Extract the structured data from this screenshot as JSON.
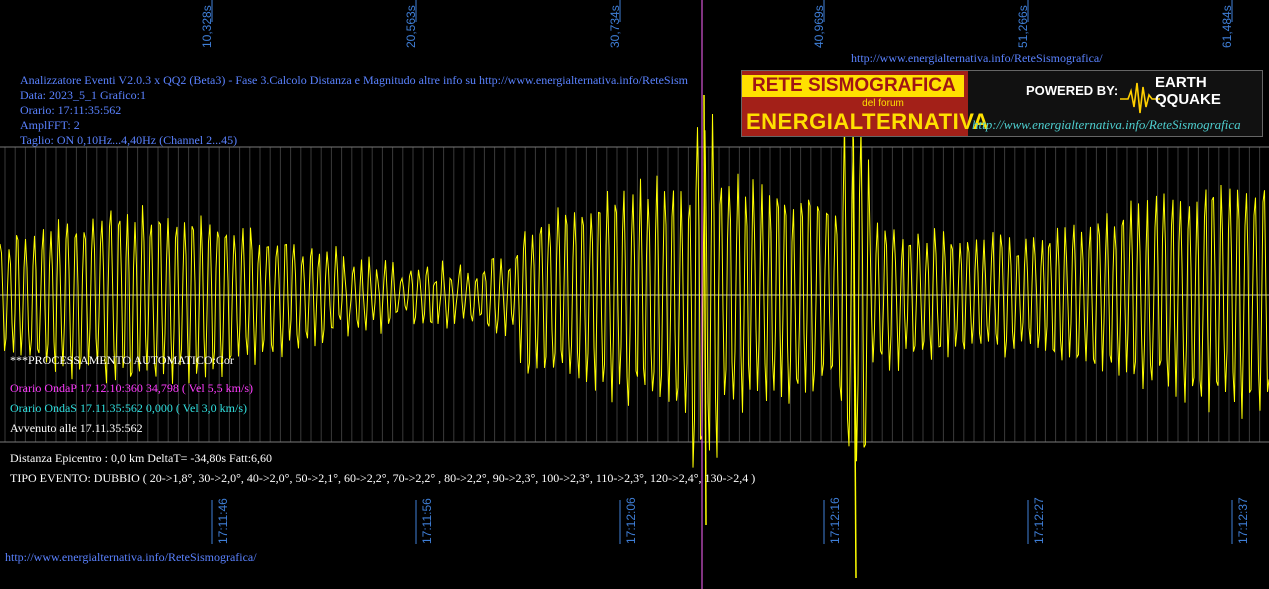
{
  "header": {
    "title_line": "Analizzatore Eventi V2.0.3 x QQ2 (Beta3) - Fase 3.Calcolo Distanza e Magnitudo altre info su http://www.energialternativa.info/ReteSism",
    "data_line": "Data: 2023_5_1 Grafico:1",
    "orario_line": "Orario: 17:11:35:562",
    "ampl_line": "AmplFFT: 2",
    "taglio_line": "Taglio: ON 0,10Hz...4,40Hz      (Channel 2...45)"
  },
  "top_url": "http://www.energialternativa.info/ReteSismografica/",
  "bottom_url": "http://www.energialternativa.info/ReteSismografica/",
  "logo": {
    "rete": "RETE SISMOGRAFICA",
    "forum": "del forum",
    "energ": "ENERGIALTERNATIVA",
    "powered": "POWERED BY:",
    "earth": "EARTH",
    "quake": "QQUAKE",
    "url": "http://www.energialternativa.info/ReteSismografica"
  },
  "info": {
    "processing": "***PROCESSAMENTO AUTOMATICO:Cor",
    "onda_p": "Orario OndaP 17.12.10:360  34,798 ( Vel 5,5 km/s)",
    "onda_s": "Orario OndaS 17.11.35:562  0,000 ( Vel 3,0 km/s)",
    "avvenuto": "Avvenuto alle 17.11.35:562",
    "distanza": "Distanza Epicentro : 0,0 km DeltaT= -34,80s  Fatt:6,60",
    "tipo_evento": "TIPO EVENTO: DUBBIO ( 20->1,8°, 30->2,0°, 40->2,0°, 50->2,1°, 60->2,2°, 70->2,2° , 80->2,2°, 90->2,3°, 100->2,3°, 110->2,3°, 120->2,4°, 130->2,4 )"
  },
  "top_ticks": [
    "10,328s",
    "20,563s",
    "30,734s",
    "40,969s",
    "51,266s",
    "61,484s"
  ],
  "bottom_ticks": [
    "17:11:46",
    "17:11:56",
    "17:12:06",
    "17:12:16",
    "17:12:27",
    "17:12:37"
  ],
  "colors": {
    "background": "#000000",
    "trace": "#ffff00",
    "grid": "#7a7a7a",
    "marker": "#ff66ff",
    "label_blue": "#5a82ff",
    "tick_blue": "#3f7fd8"
  }
}
